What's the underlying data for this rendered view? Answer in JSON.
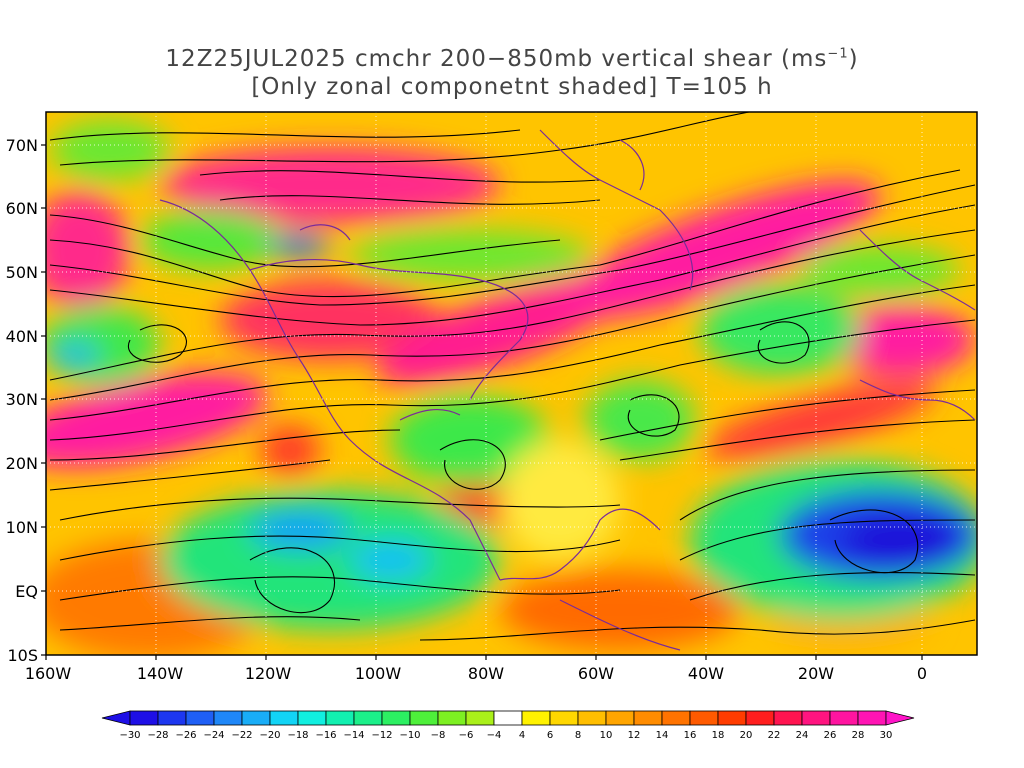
{
  "title": {
    "line1_main": "12Z25JUL2025 cmchr 200−850mb vertical shear (ms",
    "line1_sup": "−1",
    "line1_end": ")",
    "line2": "[Only zonal componetnt shaded] T=105 h"
  },
  "axes": {
    "lat_labels": [
      "70N",
      "60N",
      "50N",
      "40N",
      "30N",
      "20N",
      "10N",
      "EQ",
      "10S"
    ],
    "lon_labels": [
      "160W",
      "140W",
      "120W",
      "100W",
      "80W",
      "60W",
      "40W",
      "20W",
      "0"
    ]
  },
  "colorbar": {
    "labels": [
      "−30",
      "−28",
      "−26",
      "−24",
      "−22",
      "−20",
      "−18",
      "−16",
      "−14",
      "−12",
      "−10",
      "−8",
      "−6",
      "−4",
      "4",
      "6",
      "8",
      "10",
      "12",
      "14",
      "16",
      "18",
      "20",
      "22",
      "24",
      "26",
      "28",
      "30"
    ],
    "colors": [
      "#1e0fe6",
      "#1d37f0",
      "#1f5ff5",
      "#1f87f8",
      "#19adf7",
      "#12d4f5",
      "#11efe0",
      "#12f0b0",
      "#1cf08a",
      "#2cf062",
      "#4ef03a",
      "#7df022",
      "#aaf01a",
      "#ffffff",
      "#fff200",
      "#ffd700",
      "#ffbe00",
      "#ffa500",
      "#ff8c00",
      "#ff7300",
      "#ff5a00",
      "#ff3c00",
      "#ff1e1e",
      "#ff1450",
      "#ff1480",
      "#ff14a0",
      "#ff14b4",
      "#ff14c8"
    ]
  }
}
